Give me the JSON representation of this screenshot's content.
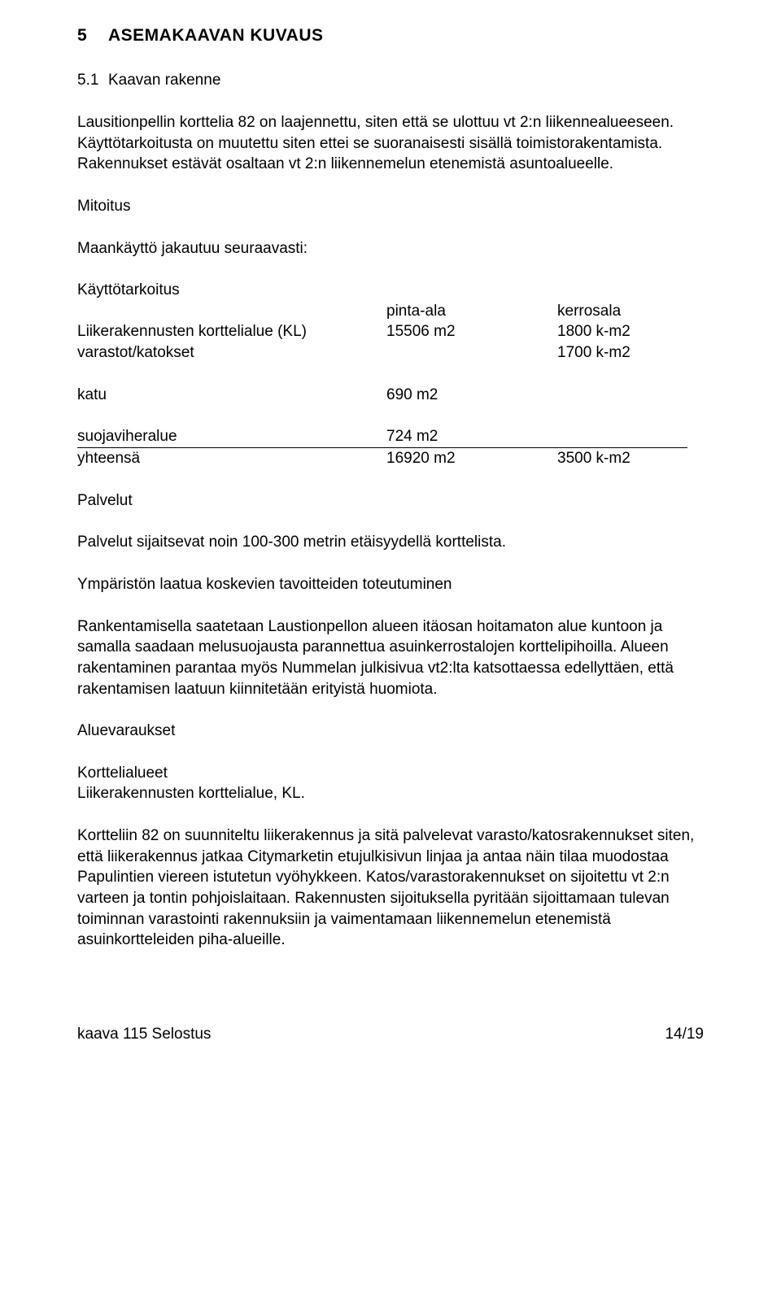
{
  "heading1": {
    "num": "5",
    "text": "ASEMAKAAVAN KUVAUS"
  },
  "heading2": {
    "num": "5.1",
    "text": "Kaavan rakenne"
  },
  "para1": "Lausitionpellin korttelia 82 on laajennettu, siten että se ulottuu vt 2:n liikennealueeseen. Käyttötarkoitusta on muutettu siten ettei se suoranaisesti sisällä toimistorakentamista. Rakennukset estävät osaltaan vt 2:n liikennemelun etenemistä asuntoalueelle.",
  "mitoitus_label": "Mitoitus",
  "maankaytto_label": "Maankäyttö jakautuu seuraavasti:",
  "table1": {
    "r0c1": "Käyttötarkoitus",
    "r1c2": "pinta-ala",
    "r1c3": "kerrosala",
    "r2c1": "Liikerakennusten korttelialue (KL)",
    "r2c2": "15506 m2",
    "r2c3": "1800 k-m2",
    "r3c1": "varastot/katokset",
    "r3c3": "1700 k-m2"
  },
  "table2": {
    "r1c1": "katu",
    "r1c2": "690 m2"
  },
  "table3": {
    "r1c1": "suojaviheralue",
    "r1c2": "724 m2",
    "r2c1": "yhteensä",
    "r2c2": "16920 m2",
    "r2c3": "3500 k-m2"
  },
  "palvelut_label": "Palvelut",
  "palvelut_text": "Palvelut sijaitsevat noin 100-300 metrin etäisyydellä korttelista.",
  "ymparisto_label": "Ympäristön laatua koskevien tavoitteiden toteutuminen",
  "ymparisto_text": "Rankentamisella saatetaan Laustionpellon alueen itäosan hoitamaton alue kuntoon ja samalla saadaan melusuojausta parannettua asuinkerrostalojen korttelipihoilla. Alueen rakentaminen parantaa myös Nummelan julkisivua vt2:lta katsottaessa edellyttäen, että rakentamisen laatuun kiinnitetään erityistä huomiota.",
  "aluevaraukset_label": "Aluevaraukset",
  "korttelialueet_l1": "Korttelialueet",
  "korttelialueet_l2": "Liikerakennusten korttelialue, KL.",
  "kortteli_text": "Kortteliin 82 on suunniteltu liikerakennus ja sitä palvelevat varasto/katosrakennukset siten, että liikerakennus jatkaa Citymarketin etujulkisivun linjaa ja antaa näin tilaa muodostaa Papulintien viereen istutetun vyöhykkeen. Katos/varastorakennukset on sijoitettu vt 2:n varteen ja tontin pohjoislaitaan. Rakennusten sijoituksella pyritään sijoittamaan tulevan toiminnan varastointi rakennuksiin ja vaimentamaan liikennemelun etenemistä asuinkortteleiden piha-alueille.",
  "footer_left": "kaava 115 Selostus",
  "footer_right": "14/19"
}
